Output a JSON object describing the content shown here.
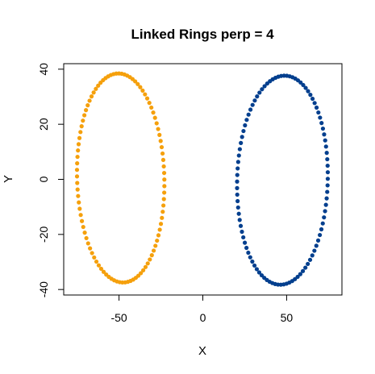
{
  "chart_data": {
    "type": "scatter",
    "title": "Linked Rings perp = 4",
    "xlabel": "X",
    "ylabel": "Y",
    "xlim": [
      -83,
      83
    ],
    "ylim": [
      -42,
      42
    ],
    "xticks": [
      -50,
      0,
      50
    ],
    "yticks": [
      -40,
      -20,
      0,
      20,
      40
    ],
    "xtick_labels": [
      "-50",
      "0",
      "50"
    ],
    "ytick_labels": [
      "-40",
      "-20",
      "0",
      "20",
      "40"
    ],
    "grid": false,
    "legend": "none",
    "series": [
      {
        "color": "#f5a00c",
        "shape": "ellipse-ring",
        "center": [
          -49,
          0.5
        ],
        "semi_axis_x": 26,
        "semi_axis_y": 38,
        "tilt_deg": 4,
        "n_points": 100
      },
      {
        "color": "#033f8e",
        "shape": "ellipse-ring",
        "center": [
          47.5,
          -0.3
        ],
        "semi_axis_x": 27,
        "semi_axis_y": 38,
        "tilt_deg": -4,
        "n_points": 100
      }
    ]
  }
}
